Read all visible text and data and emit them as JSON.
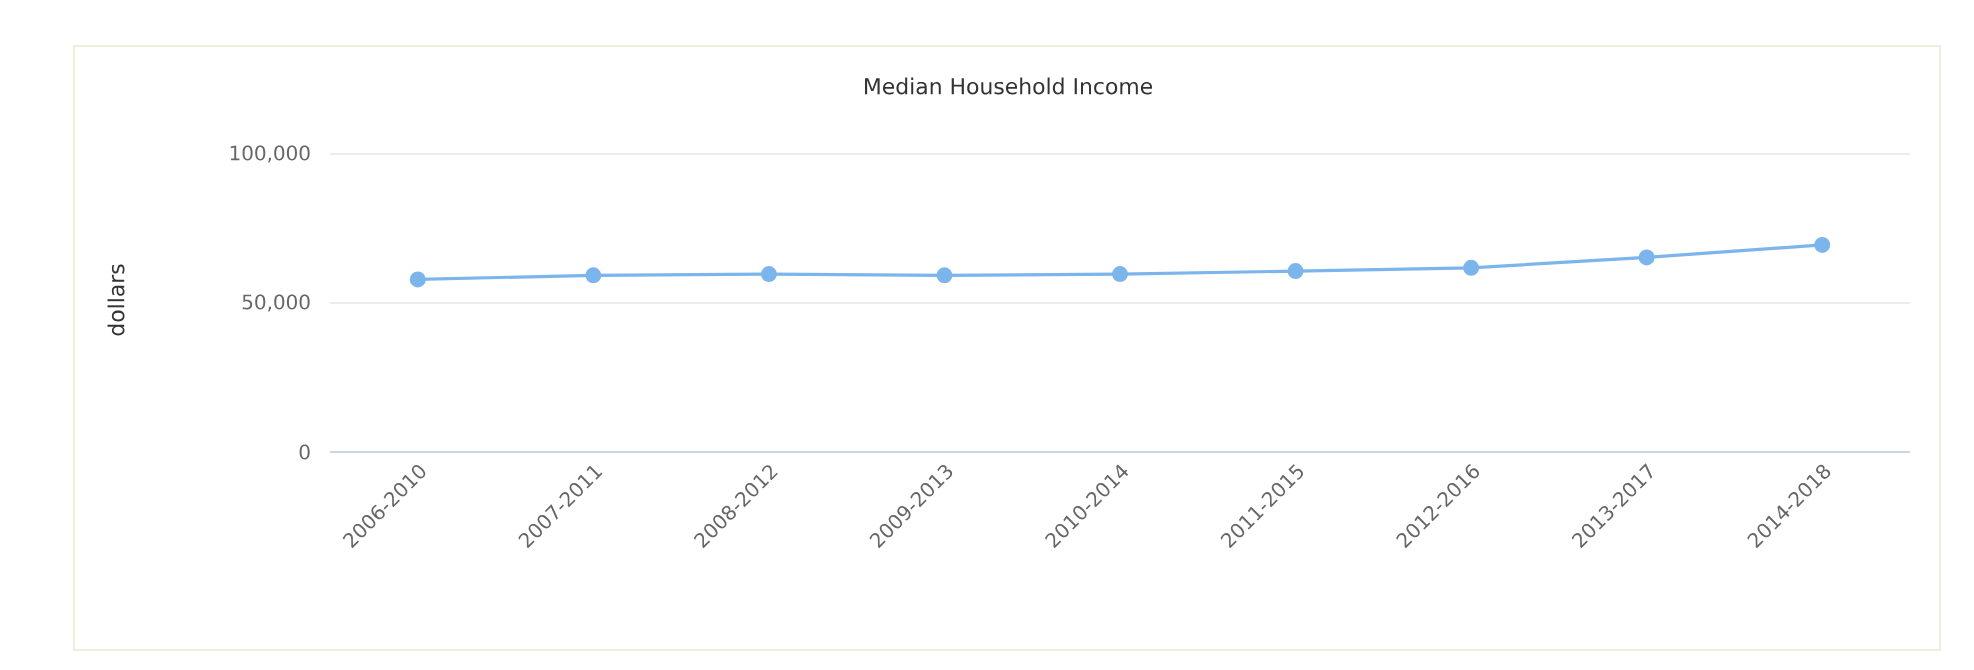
{
  "chart_data": {
    "type": "line",
    "title": "Median Household Income",
    "ylabel": "dollars",
    "categories": [
      "2006-2010",
      "2007-2011",
      "2008-2012",
      "2009-2013",
      "2010-2014",
      "2011-2015",
      "2012-2016",
      "2013-2017",
      "2014-2018"
    ],
    "series": [
      {
        "color": "#7cb5ec",
        "values": [
          57900,
          59300,
          59700,
          59300,
          59700,
          60700,
          61800,
          65300,
          69500
        ]
      }
    ],
    "ylim": [
      0,
      100000
    ],
    "yticks": [
      {
        "value": 0,
        "label": "0"
      },
      {
        "value": 50000,
        "label": "50,000"
      },
      {
        "value": 100000,
        "label": "100,000"
      }
    ],
    "grid": "y",
    "marker": "circle",
    "line_style": "solid"
  }
}
